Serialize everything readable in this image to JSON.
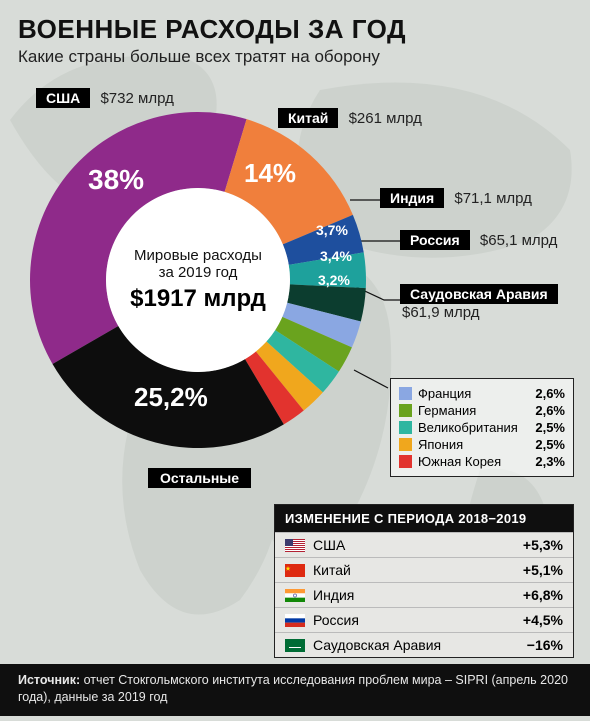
{
  "header": {
    "title": "ВОЕННЫЕ РАСХОДЫ ЗА ГОД",
    "subtitle": "Какие страны больше всех тратят на оборону"
  },
  "donut": {
    "center_line1": "Мировые расходы",
    "center_line2": "за 2019 год",
    "center_value": "$1917 млрд",
    "inner_radius": 92,
    "outer_radius": 168,
    "slices": [
      {
        "name": "США",
        "pct": 38.0,
        "pct_label": "38%",
        "color": "#8f2a8a",
        "callout_value": "$732 млрд"
      },
      {
        "name": "Китай",
        "pct": 14.0,
        "pct_label": "14%",
        "color": "#f07f3c",
        "callout_value": "$261 млрд"
      },
      {
        "name": "Индия",
        "pct": 3.7,
        "pct_label": "3,7%",
        "color": "#1e4f9e",
        "callout_value": "$71,1 млрд"
      },
      {
        "name": "Россия",
        "pct": 3.4,
        "pct_label": "3,4%",
        "color": "#1ea19c",
        "callout_value": "$65,1 млрд"
      },
      {
        "name": "Саудовская Аравия",
        "pct": 3.2,
        "pct_label": "3,2%",
        "color": "#0c3d2f",
        "callout_value": "$61,9 млрд"
      },
      {
        "name": "Франция",
        "pct": 2.6,
        "color": "#8aa7e2"
      },
      {
        "name": "Германия",
        "pct": 2.6,
        "color": "#6aa31e"
      },
      {
        "name": "Великобритания",
        "pct": 2.5,
        "color": "#2fb6a0"
      },
      {
        "name": "Япония",
        "pct": 2.5,
        "color": "#f0a71d"
      },
      {
        "name": "Южная Корея",
        "pct": 2.3,
        "color": "#e2332e"
      },
      {
        "name": "Остальные",
        "pct": 25.2,
        "pct_label": "25,2%",
        "color": "#0d0d0d"
      }
    ]
  },
  "legend": {
    "rows": [
      {
        "name": "Франция",
        "pct": "2,6%",
        "color": "#8aa7e2"
      },
      {
        "name": "Германия",
        "pct": "2,6%",
        "color": "#6aa31e"
      },
      {
        "name": "Великобритания",
        "pct": "2,5%",
        "color": "#2fb6a0"
      },
      {
        "name": "Япония",
        "pct": "2,5%",
        "color": "#f0a71d"
      },
      {
        "name": "Южная Корея",
        "pct": "2,3%",
        "color": "#e2332e"
      }
    ]
  },
  "change": {
    "header": "ИЗМЕНЕНИЕ С ПЕРИОДА 2018−2019",
    "rows": [
      {
        "name": "США",
        "delta": "+5,3%",
        "flag": "us"
      },
      {
        "name": "Китай",
        "delta": "+5,1%",
        "flag": "cn"
      },
      {
        "name": "Индия",
        "delta": "+6,8%",
        "flag": "in"
      },
      {
        "name": "Россия",
        "delta": "+4,5%",
        "flag": "ru"
      },
      {
        "name": "Саудовская Аравия",
        "delta": "−16%",
        "flag": "sa"
      }
    ]
  },
  "footer": {
    "label": "Источник:",
    "text": "отчет Стокгольмского института исследования проблем мира – SIPRI (апрель 2020 года), данные за 2019 год"
  },
  "bottom_label": "Остальные",
  "background_color": "#d8dcd8"
}
